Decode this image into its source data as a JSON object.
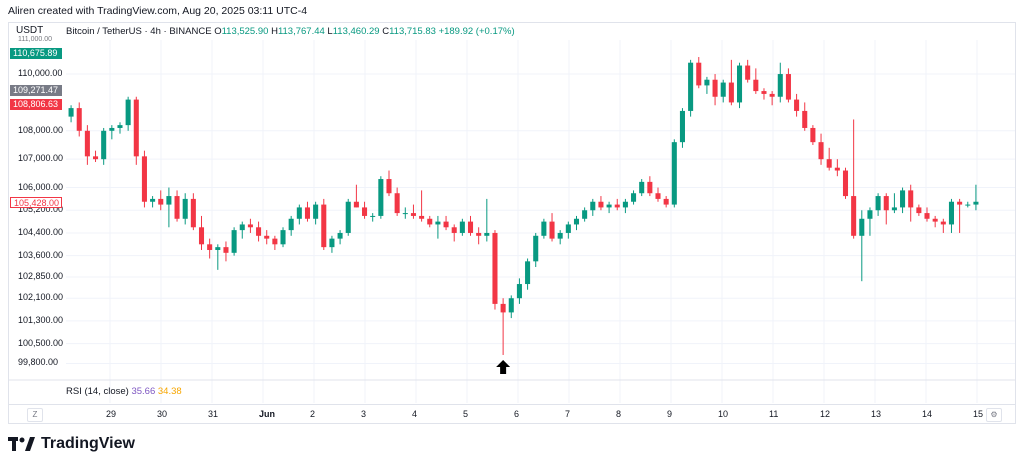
{
  "caption": "Aliren created with TradingView.com, Aug 20, 2025 03:11 UTC-4",
  "symbol": {
    "name": "Bitcoin / TetherUS · 4h · BINANCE",
    "o_label": "O",
    "o_val": "113,525.90",
    "h_label": "H",
    "h_val": "113,767.44",
    "l_label": "L",
    "l_val": "113,460.29",
    "c_label": "C",
    "c_val": "113,715.83",
    "change": "+189.92 (+0.17%)"
  },
  "price_scale": {
    "currency": "USDT",
    "top_cut": "111,000.00",
    "ticks": [
      "110,000.00",
      "108,000.00",
      "107,000.00",
      "106,000.00",
      "105,200.00",
      "104,400.00",
      "103,600.00",
      "102,850.00",
      "102,100.00",
      "101,300.00",
      "100,500.00",
      "99,800.00"
    ],
    "labels": [
      {
        "text": "110,675.89",
        "color": "#089981",
        "fg": "#ffffff"
      },
      {
        "text": "109,271.47",
        "color": "#787b86",
        "fg": "#ffffff"
      },
      {
        "text": "108,806.63",
        "color": "#f23645",
        "fg": "#ffffff"
      },
      {
        "text": "105,428.00",
        "color": "#ffffff",
        "fg": "#f23645"
      }
    ]
  },
  "rsi": {
    "label": "RSI (14, close)",
    "v1": "35.66",
    "v2": "34.38"
  },
  "time_axis": {
    "corner_left": "Z",
    "corner_right": "⚙",
    "labels": [
      "29",
      "30",
      "31",
      "Jun",
      "2",
      "3",
      "4",
      "5",
      "6",
      "7",
      "8",
      "9",
      "10",
      "11",
      "12",
      "13",
      "14",
      "15"
    ]
  },
  "brand": "TradingView",
  "colors": {
    "up": "#089981",
    "down": "#f23645",
    "arrow": "#000000"
  },
  "chart_data": {
    "type": "candlestick",
    "title": "Bitcoin / TetherUS · 4h · BINANCE",
    "ylim": [
      99500,
      111200
    ],
    "candles": [
      [
        108500,
        108900,
        108300,
        108800
      ],
      [
        108800,
        109000,
        107800,
        108000
      ],
      [
        108000,
        108200,
        106800,
        107100
      ],
      [
        107100,
        107300,
        106900,
        107000
      ],
      [
        107000,
        108100,
        106800,
        108000
      ],
      [
        108000,
        108200,
        107700,
        108100
      ],
      [
        108100,
        108300,
        107900,
        108200
      ],
      [
        108200,
        109200,
        108000,
        109100
      ],
      [
        109100,
        109200,
        106800,
        107100
      ],
      [
        107100,
        107300,
        105300,
        105500
      ],
      [
        105500,
        105700,
        105300,
        105600
      ],
      [
        105600,
        105900,
        105200,
        105400
      ],
      [
        105400,
        106000,
        104600,
        105700
      ],
      [
        105700,
        105900,
        104800,
        104900
      ],
      [
        104900,
        105800,
        104700,
        105600
      ],
      [
        105600,
        105800,
        104500,
        104600
      ],
      [
        104600,
        105000,
        103800,
        104000
      ],
      [
        104000,
        104200,
        103500,
        103800
      ],
      [
        103800,
        104000,
        103100,
        103900
      ],
      [
        103900,
        104100,
        103400,
        103700
      ],
      [
        103700,
        104600,
        103600,
        104500
      ],
      [
        104500,
        104800,
        104200,
        104700
      ],
      [
        104700,
        104900,
        104400,
        104600
      ],
      [
        104600,
        104800,
        104100,
        104300
      ],
      [
        104300,
        104500,
        104000,
        104200
      ],
      [
        104200,
        104300,
        103800,
        104000
      ],
      [
        104000,
        104600,
        103900,
        104500
      ],
      [
        104500,
        105000,
        104300,
        104900
      ],
      [
        104900,
        105400,
        104700,
        105300
      ],
      [
        105300,
        105500,
        104800,
        104900
      ],
      [
        104900,
        105500,
        104700,
        105400
      ],
      [
        105400,
        105600,
        103800,
        103900
      ],
      [
        103900,
        104300,
        103700,
        104200
      ],
      [
        104200,
        104500,
        104000,
        104400
      ],
      [
        104400,
        105600,
        104300,
        105500
      ],
      [
        105500,
        106100,
        105300,
        105300
      ],
      [
        105300,
        105500,
        104900,
        105000
      ],
      [
        105000,
        105100,
        104800,
        105000
      ],
      [
        105000,
        106400,
        104900,
        106300
      ],
      [
        106300,
        106600,
        105700,
        105800
      ],
      [
        105800,
        106000,
        105000,
        105100
      ],
      [
        105100,
        105300,
        104900,
        105100
      ],
      [
        105100,
        105400,
        104900,
        105000
      ],
      [
        105000,
        105900,
        104800,
        104900
      ],
      [
        104900,
        105000,
        104600,
        104700
      ],
      [
        104700,
        105000,
        104200,
        104800
      ],
      [
        104800,
        105000,
        104500,
        104600
      ],
      [
        104600,
        104700,
        104100,
        104400
      ],
      [
        104400,
        104900,
        104300,
        104800
      ],
      [
        104800,
        105000,
        104300,
        104400
      ],
      [
        104400,
        104600,
        104000,
        104300
      ],
      [
        104300,
        105600,
        104100,
        104400
      ],
      [
        104400,
        104500,
        101700,
        101900
      ],
      [
        101900,
        102100,
        100100,
        101600
      ],
      [
        101600,
        102200,
        101400,
        102100
      ],
      [
        102100,
        102800,
        101900,
        102600
      ],
      [
        102600,
        103500,
        102400,
        103400
      ],
      [
        103400,
        104400,
        103200,
        104300
      ],
      [
        104300,
        104900,
        104200,
        104800
      ],
      [
        104800,
        105100,
        104100,
        104200
      ],
      [
        104200,
        104500,
        104000,
        104400
      ],
      [
        104400,
        104800,
        104200,
        104700
      ],
      [
        104700,
        105000,
        104500,
        104900
      ],
      [
        104900,
        105300,
        104800,
        105200
      ],
      [
        105200,
        105600,
        105000,
        105500
      ],
      [
        105500,
        105700,
        105200,
        105300
      ],
      [
        105300,
        105500,
        105100,
        105400
      ],
      [
        105400,
        105600,
        105200,
        105300
      ],
      [
        105300,
        105600,
        105100,
        105500
      ],
      [
        105500,
        105900,
        105400,
        105800
      ],
      [
        105800,
        106300,
        105700,
        106200
      ],
      [
        106200,
        106400,
        105700,
        105800
      ],
      [
        105800,
        106000,
        105500,
        105600
      ],
      [
        105600,
        105700,
        105300,
        105400
      ],
      [
        105400,
        107700,
        105300,
        107600
      ],
      [
        107600,
        108800,
        107400,
        108700
      ],
      [
        108700,
        110500,
        108500,
        110400
      ],
      [
        110400,
        110600,
        109500,
        109600
      ],
      [
        109600,
        109900,
        109300,
        109800
      ],
      [
        109800,
        110000,
        108900,
        109200
      ],
      [
        109200,
        109800,
        109000,
        109700
      ],
      [
        109700,
        110500,
        108900,
        109000
      ],
      [
        109000,
        110400,
        108800,
        110300
      ],
      [
        110300,
        110500,
        109700,
        109800
      ],
      [
        109800,
        110200,
        109300,
        109400
      ],
      [
        109400,
        109500,
        109100,
        109300
      ],
      [
        109300,
        109400,
        108900,
        109200
      ],
      [
        109200,
        110400,
        109000,
        110000
      ],
      [
        110000,
        110200,
        109000,
        109100
      ],
      [
        109100,
        109300,
        108500,
        108700
      ],
      [
        108700,
        109000,
        108000,
        108100
      ],
      [
        108100,
        108200,
        107500,
        107600
      ],
      [
        107600,
        107900,
        106800,
        107000
      ],
      [
        107000,
        107400,
        106600,
        106700
      ],
      [
        106700,
        107000,
        106400,
        106600
      ],
      [
        106600,
        106700,
        105600,
        105700
      ],
      [
        105700,
        108400,
        104200,
        104300
      ],
      [
        104300,
        105200,
        102700,
        104900
      ],
      [
        104900,
        105300,
        104300,
        105200
      ],
      [
        105200,
        105800,
        105000,
        105700
      ],
      [
        105700,
        105800,
        104700,
        105200
      ],
      [
        105200,
        105800,
        105100,
        105300
      ],
      [
        105300,
        106000,
        105100,
        105900
      ],
      [
        105900,
        106100,
        104800,
        105300
      ],
      [
        105300,
        105400,
        105000,
        105100
      ],
      [
        105100,
        105300,
        104800,
        104900
      ],
      [
        104900,
        105000,
        104600,
        104800
      ],
      [
        104800,
        104900,
        104400,
        104700
      ],
      [
        104700,
        105600,
        104400,
        105500
      ],
      [
        105500,
        105600,
        104400,
        105400
      ],
      [
        105400,
        105500,
        105300,
        105400
      ],
      [
        105400,
        106100,
        105200,
        105500
      ]
    ],
    "annotation": {
      "type": "arrow-up",
      "at_candle": 53
    }
  }
}
